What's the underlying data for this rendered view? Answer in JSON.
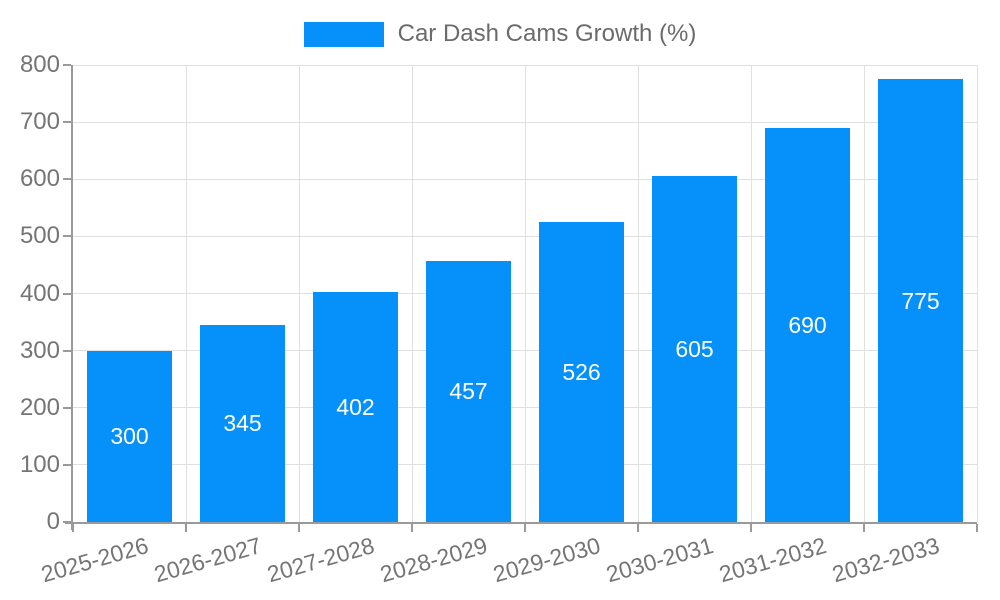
{
  "chart_data": {
    "type": "bar",
    "title": "Car Dash Cams Growth (%)",
    "legend_label": "Car Dash Cams Growth (%)",
    "legend_position": "top-center",
    "categories": [
      "2025-2026",
      "2026-2027",
      "2027-2028",
      "2028-2029",
      "2029-2030",
      "2030-2031",
      "2031-2032",
      "2032-2033"
    ],
    "values": [
      300,
      345,
      402,
      457,
      526,
      605,
      690,
      775
    ],
    "xlabel": "",
    "ylabel": "",
    "ylim": [
      0,
      800
    ],
    "ytick_step": 100,
    "grid": true,
    "bar_color": "#0690fa",
    "value_label_color": "#ffffff",
    "grid_color": "#e0e0e0",
    "axis_color": "#9a9a9a",
    "tick_label_color": "#757575",
    "legend_text_color": "#6b6b6b"
  }
}
